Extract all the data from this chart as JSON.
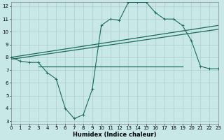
{
  "xlabel": "Humidex (Indice chaleur)",
  "bg_color": "#c8e8e8",
  "grid_color": "#b0cccc",
  "line_color": "#1a6b5a",
  "xmin": 0,
  "xmax": 23,
  "ymin": 3,
  "ymax": 12,
  "yticks": [
    3,
    4,
    5,
    6,
    7,
    8,
    9,
    10,
    11,
    12
  ],
  "xticks": [
    0,
    1,
    2,
    3,
    4,
    5,
    6,
    7,
    8,
    9,
    10,
    11,
    12,
    13,
    14,
    15,
    16,
    17,
    18,
    19,
    20,
    21,
    22,
    23
  ],
  "series1_x": [
    0,
    1,
    2,
    3,
    4,
    5,
    6,
    7,
    8,
    9,
    10,
    11,
    12,
    13,
    14,
    15,
    16,
    17,
    18,
    19,
    20,
    21,
    22,
    23
  ],
  "series1_y": [
    8.0,
    7.7,
    7.6,
    7.6,
    6.8,
    6.3,
    4.0,
    3.2,
    3.5,
    5.5,
    10.5,
    11.0,
    10.9,
    12.3,
    12.3,
    12.3,
    11.5,
    11.0,
    11.0,
    10.5,
    9.3,
    7.3,
    7.1,
    7.1
  ],
  "series2_x": [
    0,
    23
  ],
  "series2_y": [
    8.0,
    10.5
  ],
  "series3_x": [
    0,
    23
  ],
  "series3_y": [
    7.85,
    10.2
  ],
  "series4_x": [
    3,
    19
  ],
  "series4_y": [
    7.3,
    7.3
  ]
}
